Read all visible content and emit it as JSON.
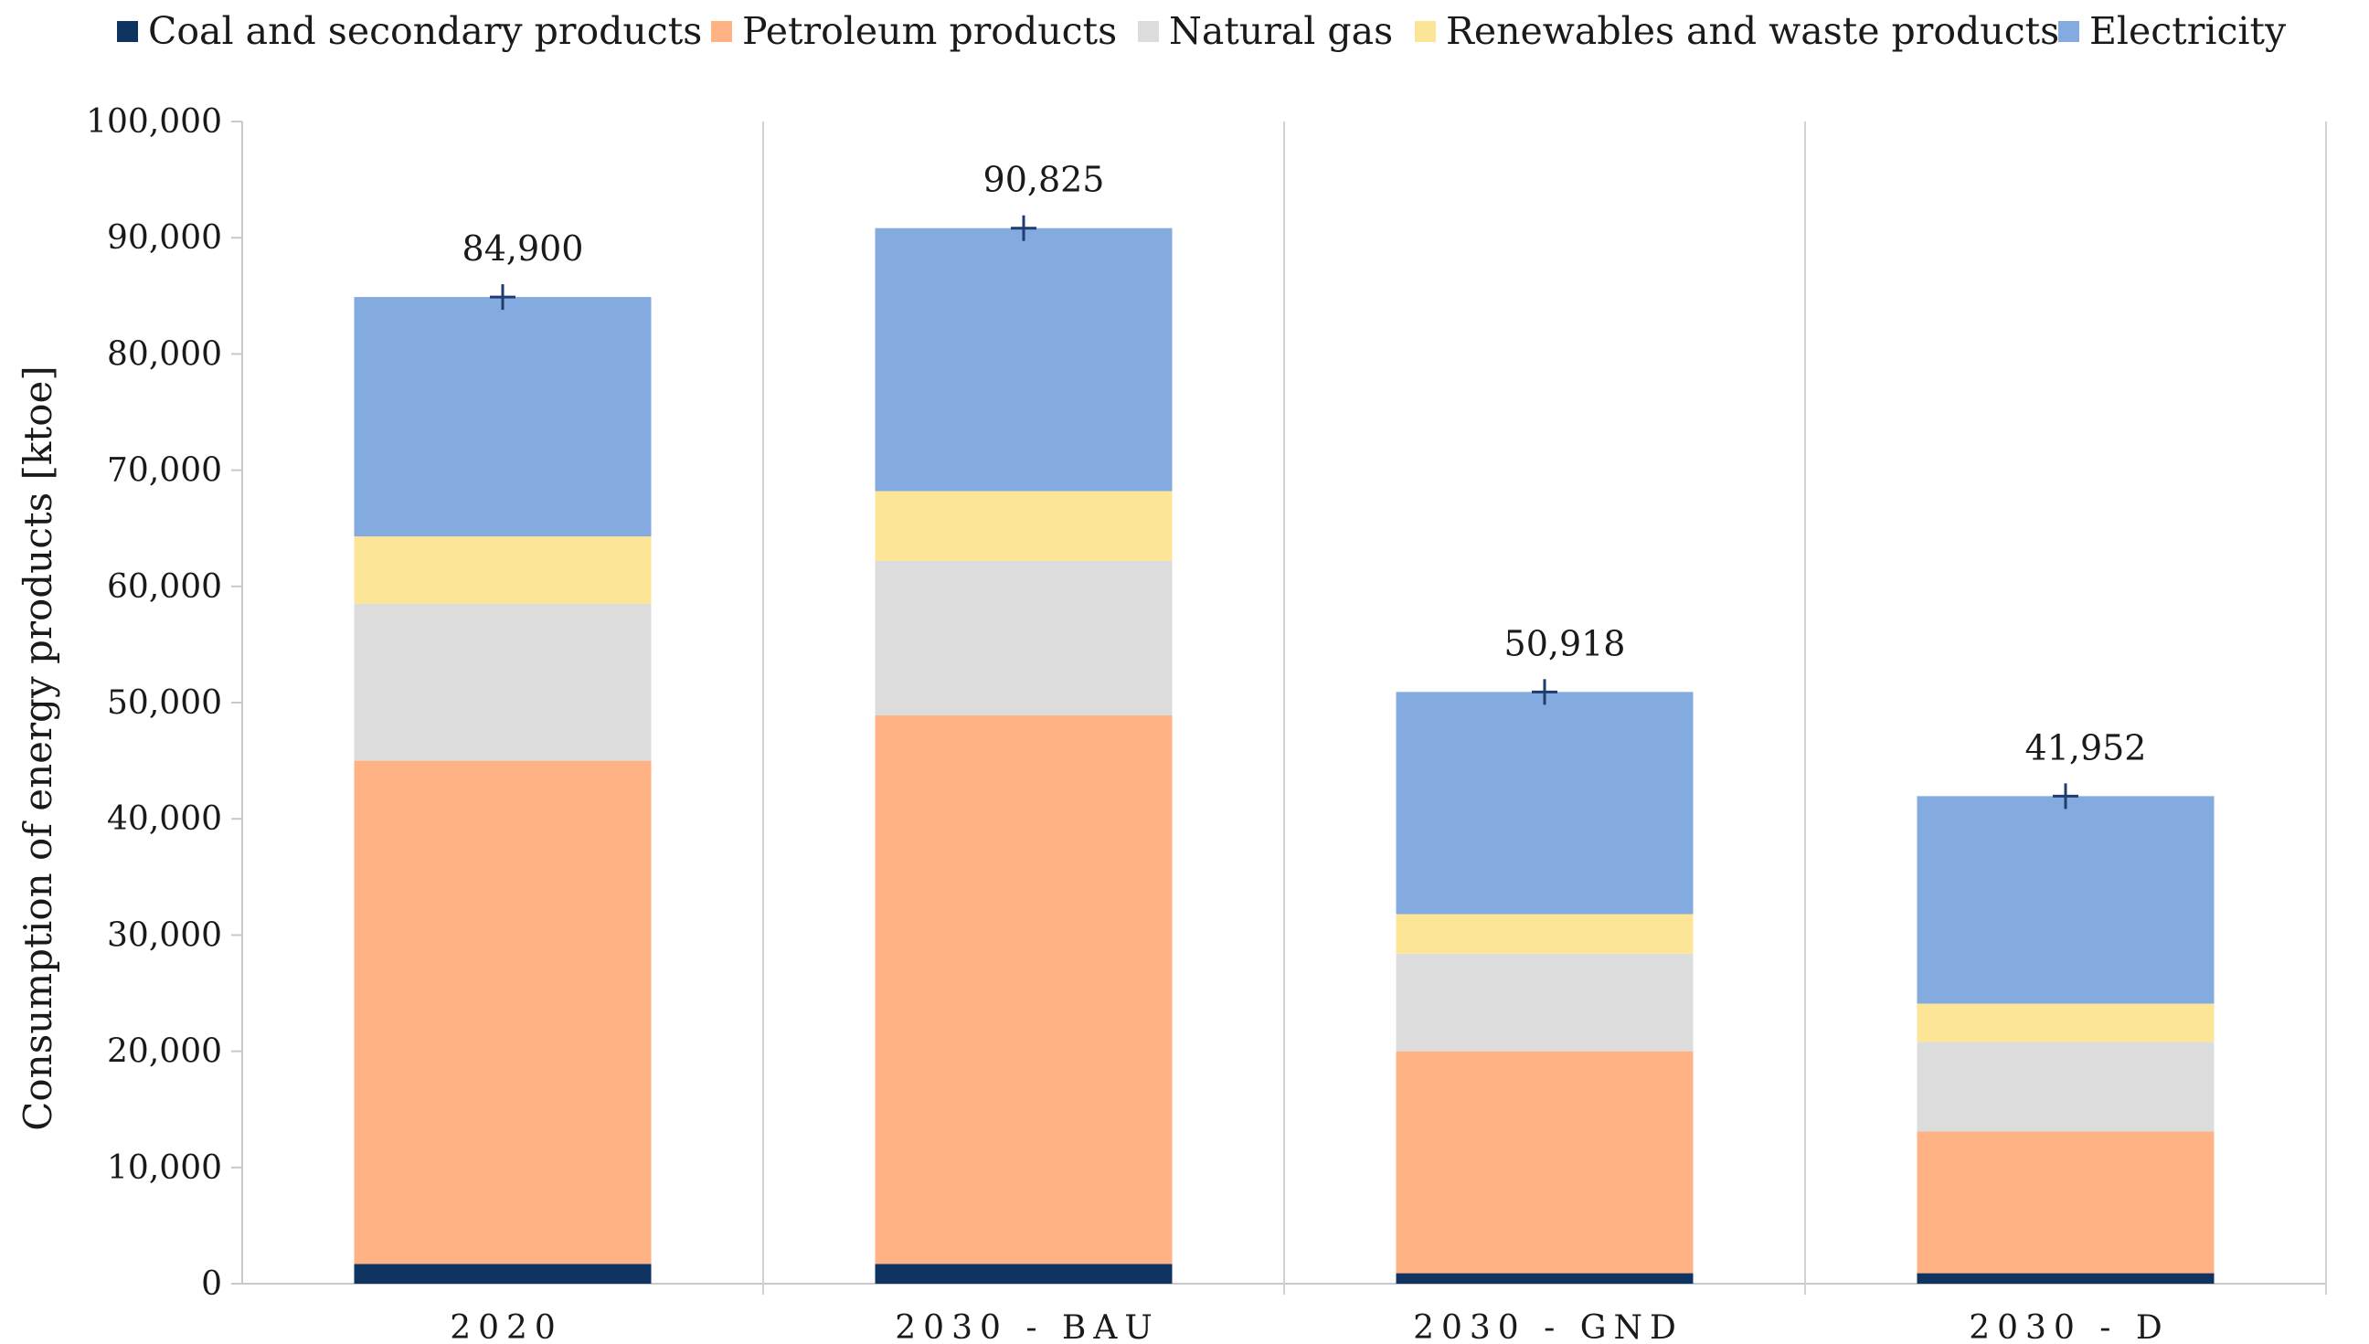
{
  "chart_data": {
    "type": "bar",
    "stacked": true,
    "title": "",
    "xlabel": "",
    "ylabel": "Consumption of energy products [ktoe]",
    "ylim": [
      0,
      100000
    ],
    "ytick_step": 10000,
    "yticks": [
      "0",
      "10,000",
      "20,000",
      "30,000",
      "40,000",
      "50,000",
      "60,000",
      "70,000",
      "80,000",
      "90,000",
      "100,000"
    ],
    "grid": false,
    "legend_position": "top",
    "categories": [
      "2020",
      "2030 - BAU",
      "2030 - GND",
      "2030 - D"
    ],
    "series": [
      {
        "name": "Coal and secondary products",
        "color": "#0f3461",
        "values": [
          1700,
          1700,
          900,
          900
        ]
      },
      {
        "name": "Petroleum products",
        "color": "#ffb284",
        "values": [
          43300,
          47200,
          19100,
          12200
        ]
      },
      {
        "name": "Natural gas",
        "color": "#dcdcdc",
        "values": [
          13500,
          13300,
          8400,
          7700
        ]
      },
      {
        "name": "Renewables and waste products",
        "color": "#fde598",
        "values": [
          5800,
          6000,
          3400,
          3300
        ]
      },
      {
        "name": "Electricity",
        "color": "#84abdf",
        "values": [
          20600,
          22625,
          19118,
          17852
        ]
      }
    ],
    "totals": [
      84900,
      90825,
      50918,
      41952
    ],
    "total_labels": [
      "84,900",
      "90,825",
      "50,918",
      "41,952"
    ],
    "total_marker": "+",
    "marker_color": "#1f3d6e"
  }
}
